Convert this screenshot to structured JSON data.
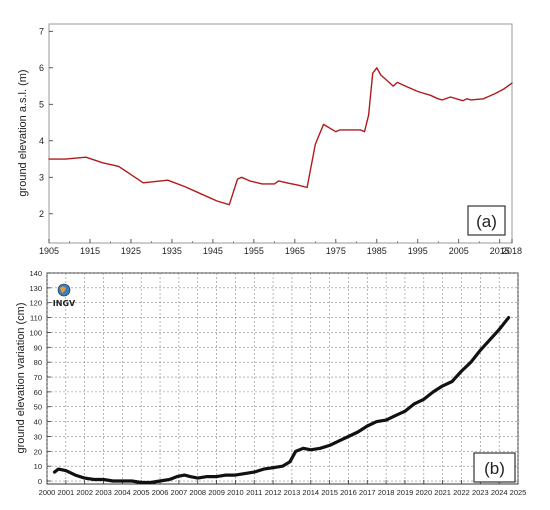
{
  "chart_data": [
    {
      "type": "line",
      "title": "",
      "panel_label": "(a)",
      "ylabel": "ground elevation a.s.l. (m)",
      "xlabel": "",
      "xlim": [
        1905,
        2018
      ],
      "ylim": [
        1.2,
        7.2
      ],
      "xticks": [
        1905,
        1915,
        1925,
        1935,
        1945,
        1955,
        1965,
        1975,
        1985,
        1995,
        2005,
        2015,
        2018
      ],
      "yticks": [
        2,
        3,
        4,
        5,
        6,
        7
      ],
      "grid": false,
      "series": [
        {
          "color": "#b01c1c",
          "x": [
            1905,
            1909,
            1914,
            1918,
            1922,
            1928,
            1934,
            1938,
            1942,
            1946,
            1949,
            1951,
            1952,
            1954,
            1957,
            1960,
            1961,
            1963,
            1966,
            1968,
            1970,
            1972,
            1975,
            1976,
            1978,
            1980,
            1981,
            1982,
            1983,
            1984,
            1985,
            1986,
            1988,
            1989,
            1990,
            1992,
            1995,
            1998,
            2000,
            2001,
            2003,
            2006,
            2007,
            2008,
            2011,
            2012,
            2014,
            2016,
            2018
          ],
          "y": [
            3.5,
            3.5,
            3.55,
            3.4,
            3.3,
            2.85,
            2.92,
            2.75,
            2.55,
            2.35,
            2.25,
            2.95,
            3.0,
            2.9,
            2.82,
            2.82,
            2.9,
            2.85,
            2.78,
            2.72,
            3.9,
            4.45,
            4.25,
            4.3,
            4.3,
            4.3,
            4.3,
            4.25,
            4.7,
            5.85,
            6.0,
            5.8,
            5.6,
            5.5,
            5.6,
            5.5,
            5.35,
            5.25,
            5.15,
            5.12,
            5.2,
            5.1,
            5.15,
            5.12,
            5.15,
            5.2,
            5.3,
            5.42,
            5.58
          ]
        }
      ]
    },
    {
      "type": "line",
      "title": "",
      "panel_label": "(b)",
      "logo_text": "INGV",
      "ylabel": "ground elevation variation (cm)",
      "xlabel": "",
      "xlim": [
        2000,
        2025
      ],
      "ylim": [
        -2,
        140
      ],
      "xticks": [
        2000,
        2001,
        2002,
        2003,
        2004,
        2005,
        2006,
        2007,
        2008,
        2009,
        2010,
        2011,
        2012,
        2013,
        2014,
        2015,
        2016,
        2017,
        2018,
        2019,
        2020,
        2021,
        2022,
        2023,
        2024,
        2025
      ],
      "yticks": [
        0,
        10,
        20,
        30,
        40,
        50,
        60,
        70,
        80,
        90,
        100,
        110,
        120,
        130,
        140
      ],
      "grid": true,
      "series": [
        {
          "color": "#111111",
          "x": [
            2000.4,
            2000.6,
            2001.0,
            2001.5,
            2002.0,
            2002.5,
            2003.0,
            2003.5,
            2004.0,
            2004.5,
            2005.0,
            2005.5,
            2006.0,
            2006.5,
            2006.9,
            2007.3,
            2007.6,
            2008.0,
            2008.5,
            2009.0,
            2009.5,
            2010.0,
            2010.5,
            2011.0,
            2011.5,
            2012.0,
            2012.5,
            2012.9,
            2013.2,
            2013.6,
            2014.0,
            2014.5,
            2015.0,
            2015.5,
            2016.0,
            2016.5,
            2017.0,
            2017.5,
            2018.0,
            2018.5,
            2019.0,
            2019.5,
            2020.0,
            2020.5,
            2021.0,
            2021.5,
            2022.0,
            2022.5,
            2023.0,
            2023.5,
            2024.0,
            2024.5
          ],
          "y": [
            6,
            8,
            7,
            4,
            2,
            1,
            1,
            0,
            0,
            0,
            -1,
            -1,
            0,
            1,
            3,
            4,
            3,
            2,
            3,
            3,
            4,
            4,
            5,
            6,
            8,
            9,
            10,
            13,
            20,
            22,
            21,
            22,
            24,
            27,
            30,
            33,
            37,
            40,
            41,
            44,
            47,
            52,
            55,
            60,
            64,
            67,
            74,
            80,
            88,
            95,
            102,
            110
          ]
        }
      ]
    }
  ]
}
